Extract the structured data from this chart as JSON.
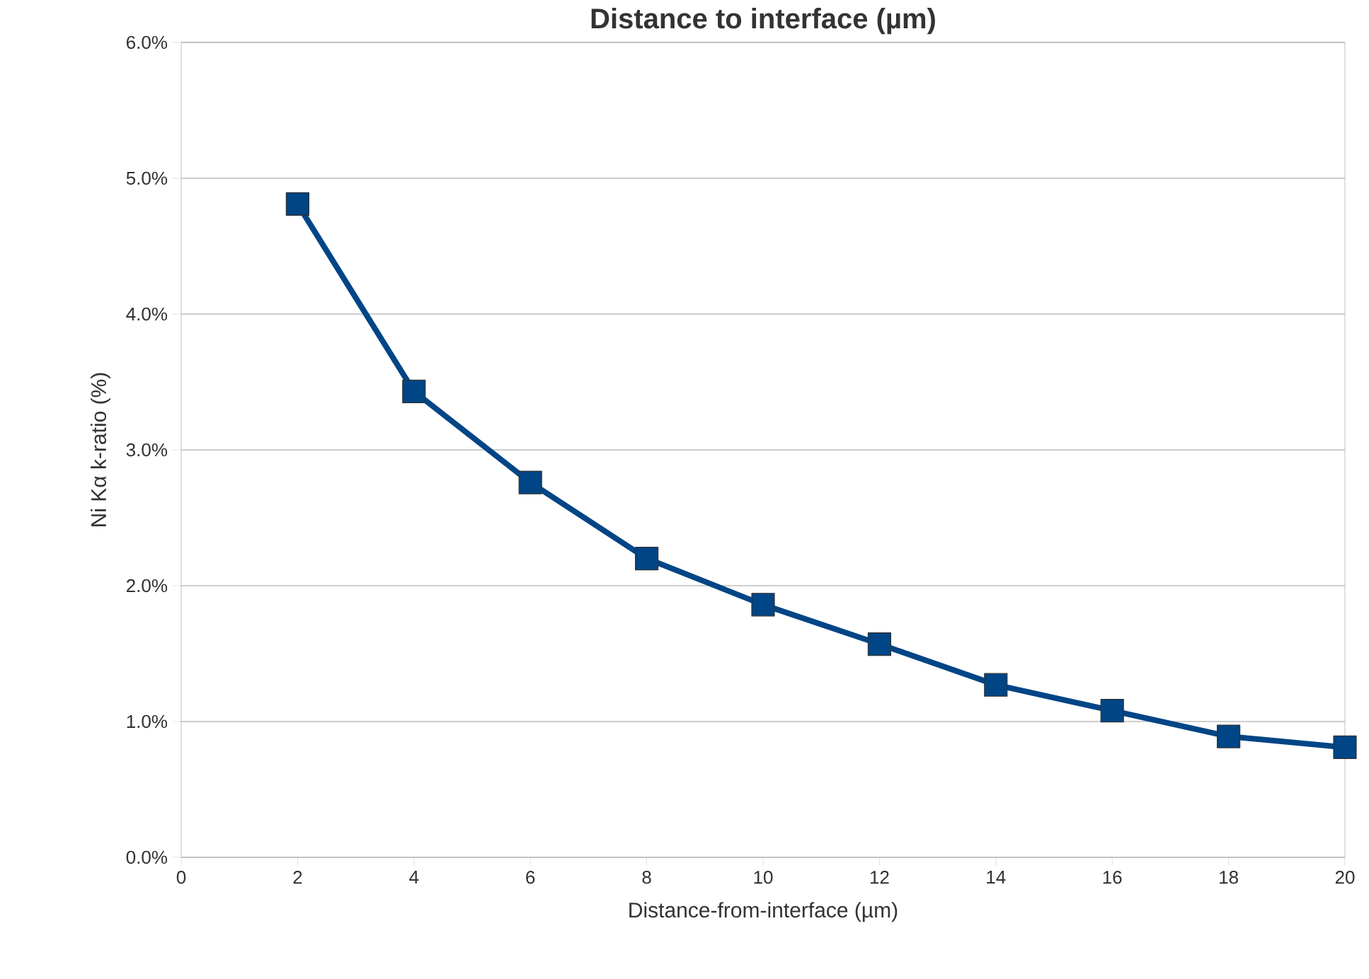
{
  "chart_data": {
    "type": "line",
    "title": "Distance to interface (µm)",
    "xlabel": "Distance-from-interface (µm)",
    "ylabel": "Ni Kα k-ratio (%)",
    "x": [
      2,
      4,
      6,
      8,
      10,
      12,
      14,
      16,
      18,
      20
    ],
    "series": [
      {
        "color": "#004586",
        "values": [
          4.81,
          3.43,
          2.76,
          2.2,
          1.86,
          1.57,
          1.27,
          1.08,
          0.89,
          0.81
        ]
      }
    ],
    "xlim": [
      0,
      20
    ],
    "xticks": [
      0,
      2,
      4,
      6,
      8,
      10,
      12,
      14,
      16,
      18,
      20
    ],
    "ylim": [
      0,
      6
    ],
    "yticks": [
      {
        "value": 0,
        "label": "0.0%"
      },
      {
        "value": 1,
        "label": "1.0%"
      },
      {
        "value": 2,
        "label": "2.0%"
      },
      {
        "value": 3,
        "label": "3.0%"
      },
      {
        "value": 4,
        "label": "4.0%"
      },
      {
        "value": 5,
        "label": "5.0%"
      },
      {
        "value": 6,
        "label": "6.0%"
      }
    ],
    "grid": "y",
    "marker": "square",
    "line_style": "solid"
  }
}
